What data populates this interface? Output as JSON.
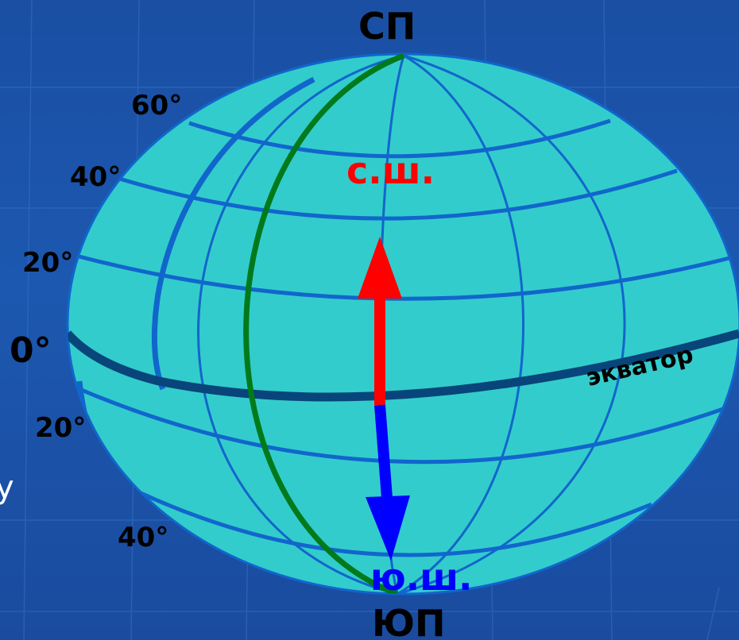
{
  "colors": {
    "background": "#1c55ad",
    "globe_fill": "#33cccc",
    "grid_lines": "#1166cc",
    "equator": "#08457a",
    "prime_meridian": "#007a1a",
    "north_arrow": "#ff0000",
    "south_arrow": "#0000ff"
  },
  "labels": {
    "north_pole": "СП",
    "south_pole": "ЮП",
    "northern_hemisphere": "с.ш.",
    "southern_hemisphere": "ю.ш.",
    "equator": "экватор",
    "edge_glyph": "у"
  },
  "latitudes": {
    "north": [
      "60°",
      "40°",
      "20°"
    ],
    "zero": "0°",
    "south": [
      "20°",
      "40°"
    ]
  }
}
